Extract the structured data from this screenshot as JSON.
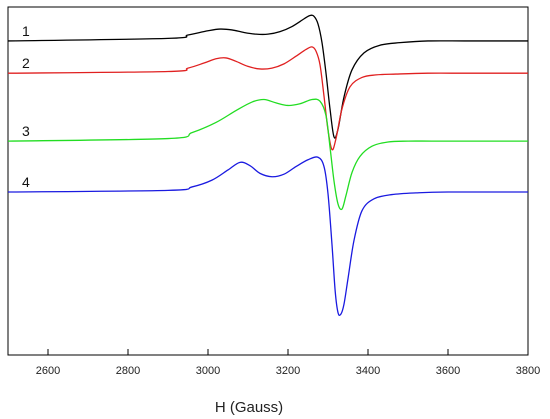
{
  "chart_data": {
    "type": "line",
    "title": "",
    "xlabel": "H (Gauss)",
    "ylabel": "",
    "xlim": [
      2500,
      3800
    ],
    "ylim": [
      -2.7,
      1.4
    ],
    "xticks": [
      2600,
      2800,
      3000,
      3200,
      3400,
      3600,
      3800
    ],
    "tick_labels": [
      "2600",
      "2800",
      "3000",
      "3200",
      "3400",
      "3600",
      "3800"
    ],
    "grid": false,
    "legend": "none",
    "series": [
      {
        "name": "1",
        "color": "#000000",
        "x": [
          2500,
          2900,
          2950,
          3000,
          3030,
          3060,
          3090,
          3120,
          3150,
          3180,
          3210,
          3240,
          3255,
          3265,
          3275,
          3285,
          3295,
          3305,
          3315,
          3325,
          3340,
          3360,
          3390,
          3430,
          3480,
          3550,
          3650,
          3800
        ],
        "values": [
          1.0,
          1.03,
          1.07,
          1.12,
          1.14,
          1.13,
          1.1,
          1.08,
          1.08,
          1.11,
          1.17,
          1.26,
          1.3,
          1.29,
          1.2,
          0.98,
          0.62,
          0.2,
          -0.13,
          -0.04,
          0.34,
          0.66,
          0.86,
          0.95,
          0.98,
          1.0,
          1.0,
          1.0
        ]
      },
      {
        "name": "2",
        "color": "#e02020",
        "x": [
          2500,
          2900,
          2950,
          2990,
          3020,
          3045,
          3070,
          3100,
          3130,
          3160,
          3190,
          3220,
          3245,
          3260,
          3270,
          3280,
          3290,
          3300,
          3310,
          3320,
          3335,
          3355,
          3385,
          3420,
          3470,
          3550,
          3650,
          3800
        ],
        "values": [
          0.62,
          0.64,
          0.68,
          0.74,
          0.79,
          0.8,
          0.76,
          0.7,
          0.67,
          0.68,
          0.73,
          0.82,
          0.9,
          0.93,
          0.88,
          0.72,
          0.35,
          -0.05,
          -0.28,
          -0.15,
          0.2,
          0.46,
          0.57,
          0.6,
          0.61,
          0.62,
          0.62,
          0.62
        ]
      },
      {
        "name": "3",
        "color": "#22dd22",
        "x": [
          2500,
          2900,
          2960,
          3020,
          3070,
          3110,
          3140,
          3170,
          3200,
          3230,
          3260,
          3280,
          3295,
          3305,
          3315,
          3325,
          3335,
          3345,
          3360,
          3380,
          3410,
          3450,
          3500,
          3560,
          3650,
          3800
        ],
        "values": [
          -0.18,
          -0.15,
          -0.08,
          0.04,
          0.18,
          0.28,
          0.31,
          0.27,
          0.24,
          0.26,
          0.31,
          0.29,
          0.12,
          -0.25,
          -0.65,
          -0.92,
          -0.98,
          -0.82,
          -0.55,
          -0.36,
          -0.24,
          -0.19,
          -0.18,
          -0.18,
          -0.18,
          -0.18
        ]
      },
      {
        "name": "4",
        "color": "#1a1ae0",
        "x": [
          2500,
          2900,
          2960,
          3010,
          3050,
          3080,
          3105,
          3130,
          3160,
          3190,
          3220,
          3250,
          3275,
          3290,
          3300,
          3310,
          3318,
          3325,
          3332,
          3340,
          3350,
          3365,
          3385,
          3415,
          3460,
          3520,
          3600,
          3800
        ],
        "values": [
          -0.78,
          -0.76,
          -0.72,
          -0.64,
          -0.52,
          -0.43,
          -0.47,
          -0.56,
          -0.6,
          -0.57,
          -0.48,
          -0.4,
          -0.37,
          -0.48,
          -0.8,
          -1.4,
          -1.95,
          -2.2,
          -2.22,
          -2.1,
          -1.8,
          -1.35,
          -1.0,
          -0.86,
          -0.81,
          -0.79,
          -0.78,
          -0.78
        ]
      }
    ]
  }
}
